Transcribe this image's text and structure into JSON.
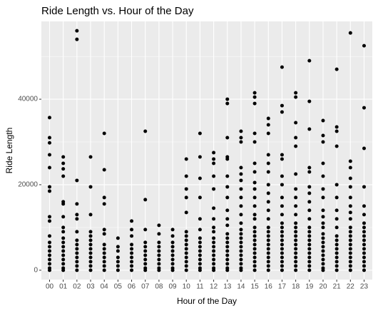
{
  "chart_data": {
    "type": "scatter",
    "title": "Ride Length vs. Hour of the Day",
    "x_label": "Hour of the Day",
    "y_label": "Ride Length",
    "categories": [
      "00",
      "01",
      "02",
      "03",
      "04",
      "05",
      "06",
      "07",
      "08",
      "09",
      "10",
      "11",
      "12",
      "13",
      "14",
      "15",
      "16",
      "17",
      "18",
      "19",
      "20",
      "21",
      "22",
      "23"
    ],
    "values": [
      [
        35700,
        31000,
        29800,
        27000,
        24000,
        19500,
        18500,
        12500,
        11500,
        8000,
        6500,
        5500,
        4500,
        3500,
        2500,
        1500,
        500,
        0
      ],
      [
        26500,
        25000,
        23700,
        22000,
        16000,
        15500,
        12500,
        10000,
        9000,
        7500,
        6500,
        5500,
        4500,
        3500,
        2500,
        1500,
        500,
        0
      ],
      [
        56000,
        54000,
        21000,
        15500,
        13000,
        12000,
        9000,
        7000,
        6000,
        5000,
        4000,
        3000,
        2000,
        1000,
        0
      ],
      [
        26500,
        19500,
        13000,
        9000,
        8000,
        7000,
        6000,
        5000,
        4000,
        3000,
        2000,
        1000,
        0
      ],
      [
        32000,
        23500,
        17000,
        15500,
        9500,
        8500,
        6000,
        5000,
        4000,
        3000,
        2000,
        1000,
        0
      ],
      [
        7500,
        5500,
        4500,
        3000,
        2000,
        1000,
        0
      ],
      [
        11500,
        9500,
        8000,
        6000,
        5000,
        4000,
        3000,
        2000,
        1000,
        0
      ],
      [
        32500,
        16500,
        9500,
        6500,
        5500,
        4500,
        3500,
        2500,
        1500,
        500,
        0
      ],
      [
        10500,
        8500,
        6500,
        5500,
        4500,
        3500,
        2500,
        1500,
        500,
        0
      ],
      [
        9500,
        8000,
        6500,
        5500,
        4500,
        3500,
        2500,
        1500,
        500,
        0
      ],
      [
        26000,
        22000,
        19000,
        17000,
        13500,
        9000,
        8000,
        7000,
        6000,
        5000,
        4000,
        3000,
        2000,
        1000,
        0
      ],
      [
        32000,
        26500,
        21500,
        17000,
        12000,
        9500,
        7500,
        6500,
        5500,
        4500,
        3500,
        2500,
        1500,
        500,
        0
      ],
      [
        27500,
        26000,
        25000,
        22000,
        19000,
        14500,
        12000,
        10000,
        9000,
        7500,
        6500,
        5500,
        4500,
        3500,
        2500,
        1500,
        500,
        0
      ],
      [
        40000,
        39000,
        31000,
        26500,
        26000,
        22000,
        19500,
        17000,
        14000,
        12000,
        10500,
        8500,
        7500,
        6500,
        5500,
        4500,
        3500,
        2500,
        1500,
        500,
        0
      ],
      [
        32500,
        31000,
        30000,
        24000,
        22500,
        21000,
        19000,
        17000,
        15000,
        13000,
        11000,
        9500,
        8500,
        7500,
        6500,
        5500,
        4500,
        3500,
        2500,
        1500,
        500,
        0
      ],
      [
        41500,
        40500,
        39000,
        32000,
        30000,
        25000,
        23000,
        20500,
        19000,
        17000,
        15000,
        13000,
        12000,
        10000,
        9000,
        8000,
        7000,
        6000,
        5000,
        4000,
        3000,
        2000,
        1000,
        0
      ],
      [
        35500,
        34000,
        32000,
        27000,
        25000,
        23000,
        20000,
        18000,
        16000,
        14000,
        12000,
        10000,
        9000,
        8000,
        7000,
        6000,
        5000,
        4000,
        3000,
        2000,
        1000,
        0
      ],
      [
        47500,
        38500,
        37000,
        27000,
        26000,
        22000,
        20000,
        17000,
        15000,
        13000,
        11000,
        10000,
        9000,
        8000,
        7000,
        6000,
        5000,
        4000,
        3000,
        2000,
        1000,
        0
      ],
      [
        41500,
        40500,
        34500,
        31000,
        29000,
        22500,
        19000,
        17000,
        15000,
        13000,
        11000,
        10000,
        9000,
        8000,
        7000,
        6000,
        5000,
        4000,
        3000,
        2000,
        1000,
        0
      ],
      [
        49000,
        39500,
        33000,
        24000,
        23000,
        19500,
        18000,
        16000,
        14000,
        12000,
        10000,
        9000,
        8000,
        7000,
        6000,
        5000,
        4000,
        3000,
        2000,
        1000,
        0
      ],
      [
        35000,
        31500,
        30000,
        25000,
        22000,
        19000,
        17000,
        14000,
        12500,
        11000,
        10000,
        8500,
        7500,
        6500,
        5500,
        4500,
        3500,
        2500,
        1500,
        500,
        0
      ],
      [
        47000,
        33500,
        32500,
        29000,
        20000,
        17000,
        14000,
        12000,
        10000,
        8000,
        7000,
        6000,
        5000,
        4000,
        3000,
        2000,
        1000,
        0
      ],
      [
        55500,
        25500,
        24000,
        21500,
        19500,
        17000,
        15000,
        13500,
        12000,
        10000,
        9000,
        8000,
        7000,
        6000,
        5000,
        4000,
        3000,
        2000,
        1000,
        0
      ],
      [
        52500,
        38000,
        28500,
        19500,
        15000,
        13000,
        11000,
        10000,
        9000,
        8000,
        7000,
        6000,
        5000,
        4000,
        3000,
        2000,
        1000,
        0
      ]
    ],
    "color": "#000000",
    "ylim": [
      -2200,
      58200
    ],
    "yticks": [
      0,
      20000,
      40000
    ],
    "yminor": [
      10000,
      30000,
      50000
    ],
    "grid": true
  }
}
